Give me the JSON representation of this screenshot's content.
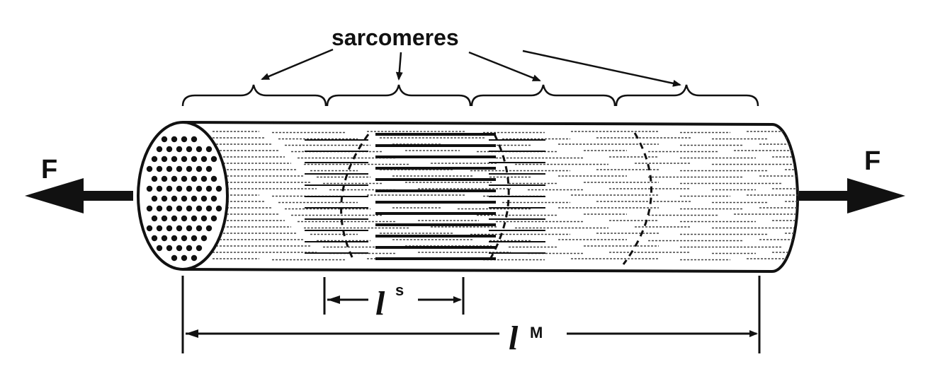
{
  "diagram": {
    "sarcomeres_label": "sarcomeres",
    "force_left": "F",
    "force_right": "F",
    "sarcomere_length_symbol": "l",
    "sarcomere_length_sup": "s",
    "muscle_length_symbol": "l",
    "muscle_length_sup": "M"
  },
  "colors": {
    "ink": "#111111",
    "fiber_stroke": "#444444",
    "background": "#ffffff"
  }
}
